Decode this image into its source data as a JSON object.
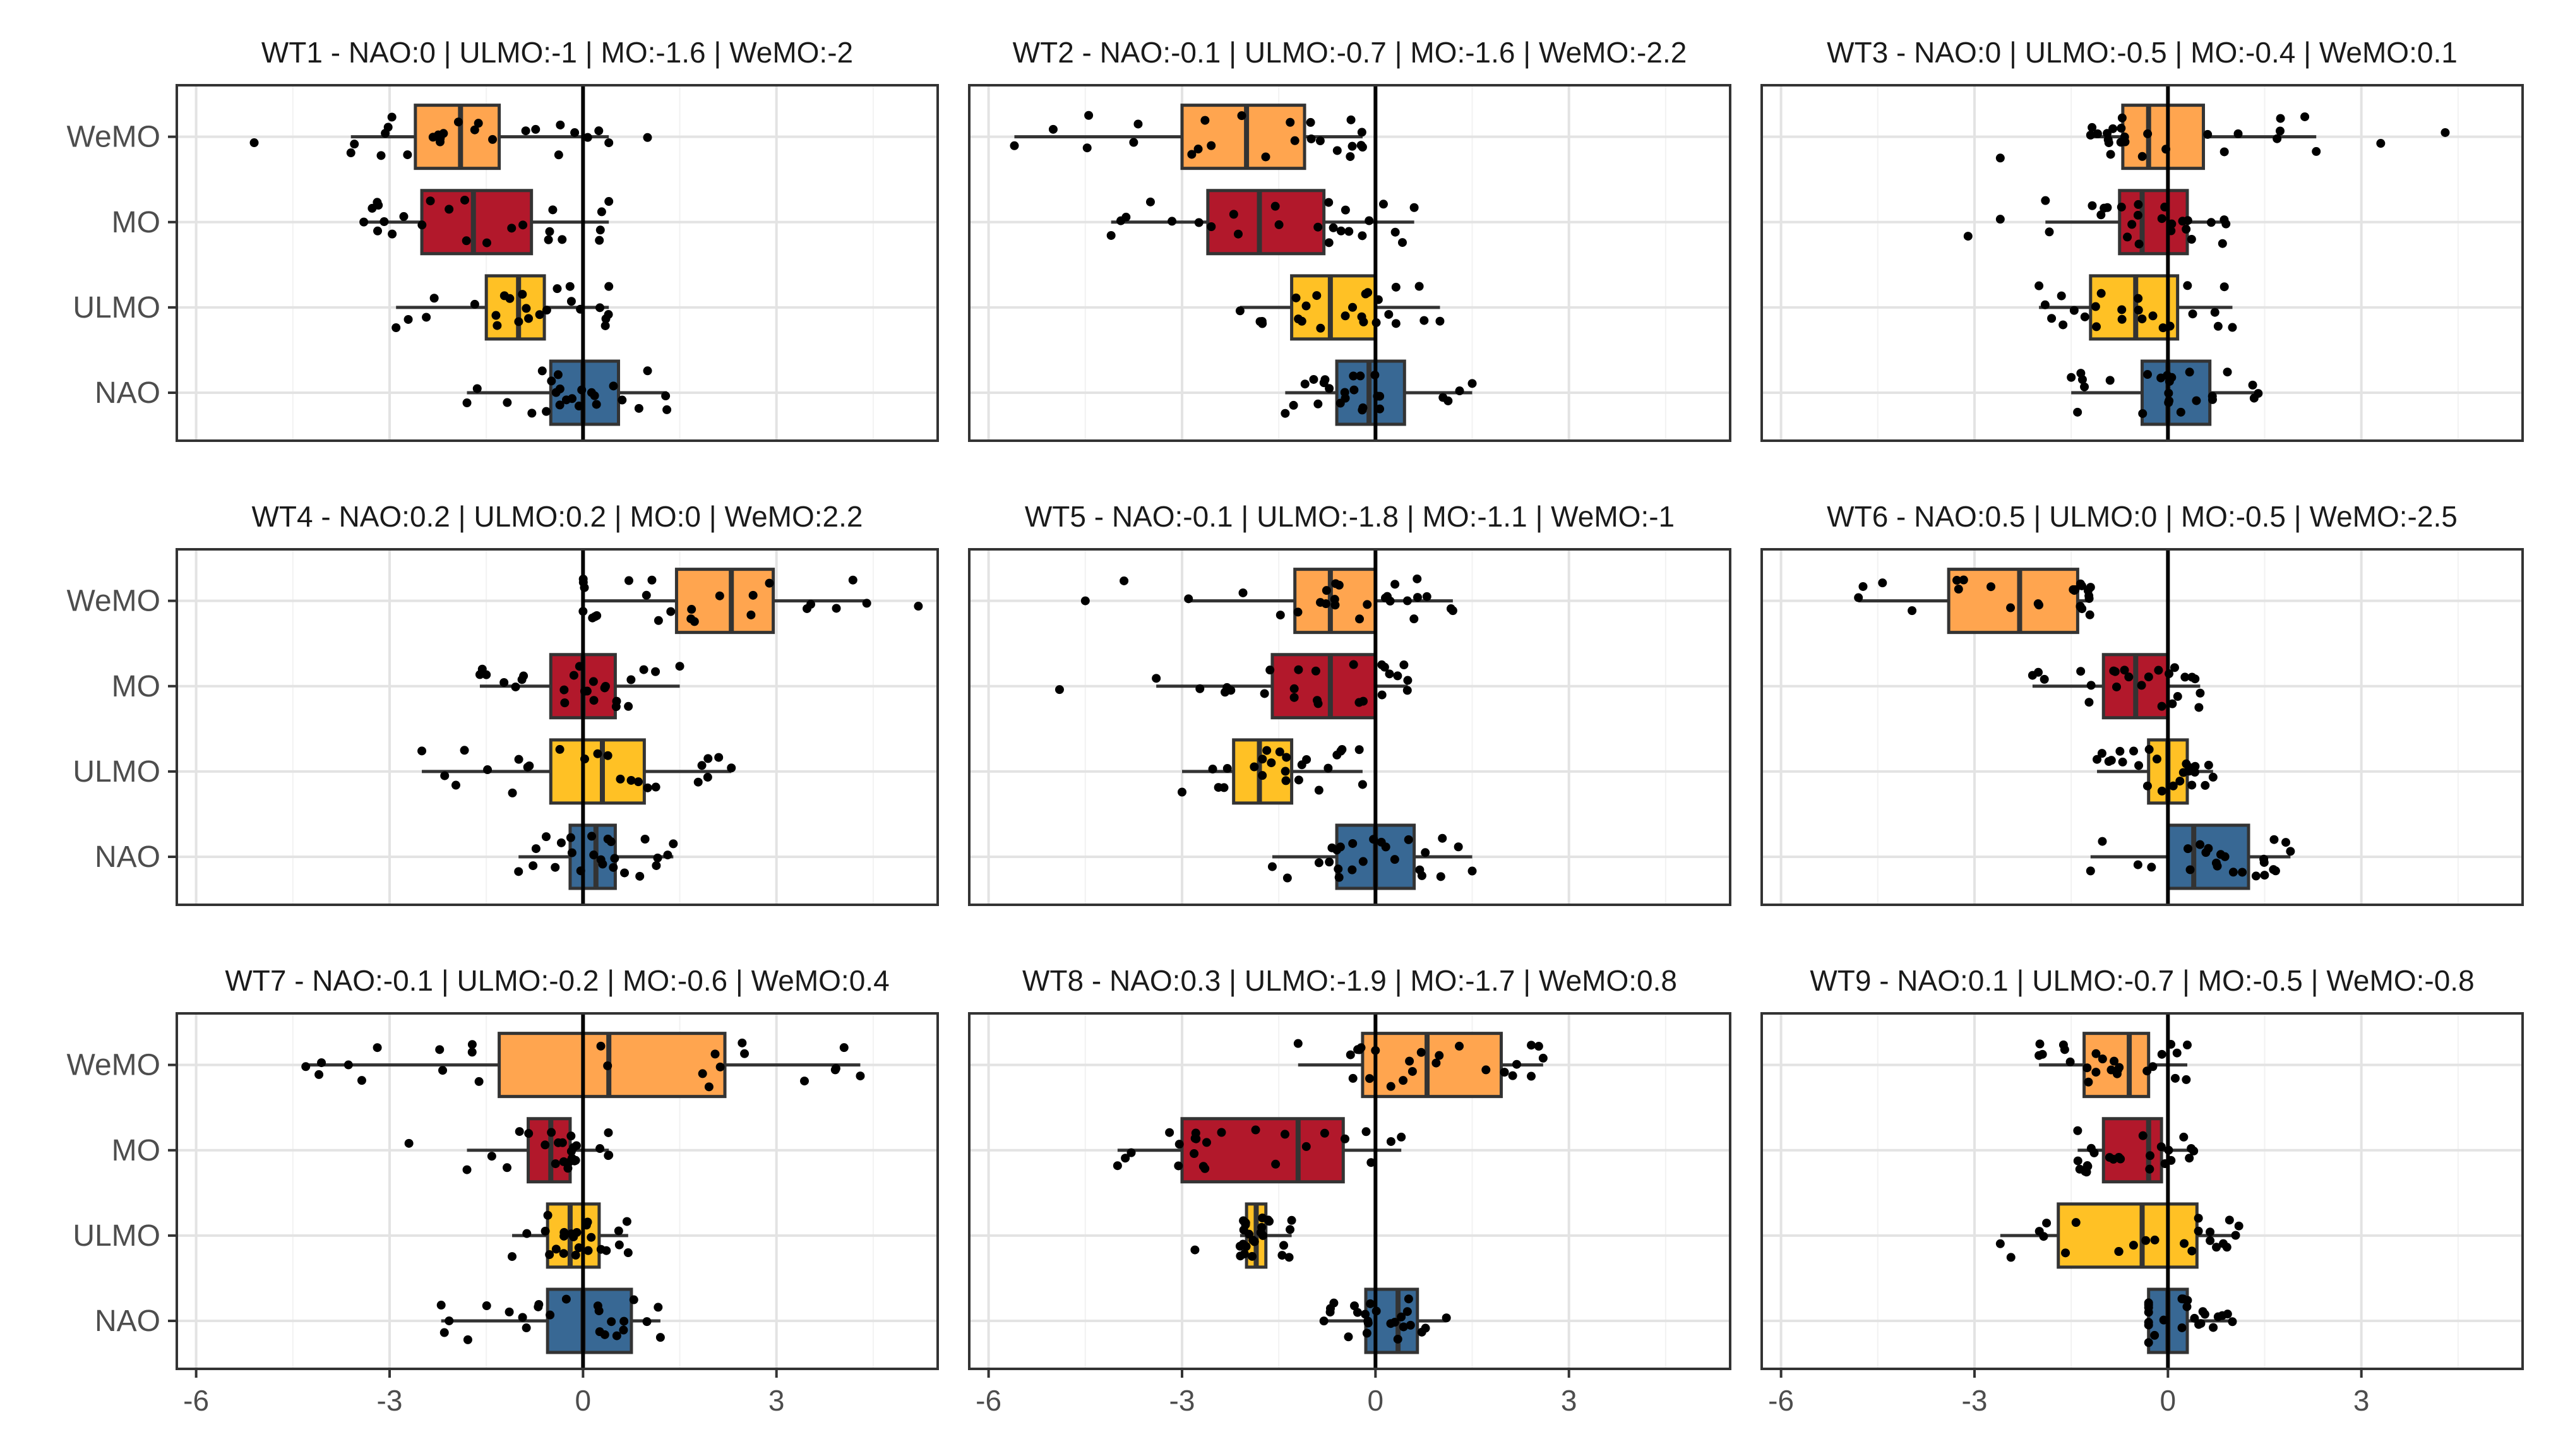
{
  "chart_data": {
    "type": "boxplot-facets",
    "orientation": "horizontal",
    "categories": [
      "WeMO",
      "MO",
      "ULMO",
      "NAO"
    ],
    "colors": {
      "WeMO": "#FFA54F",
      "MO": "#B2182B",
      "ULMO": "#FFC125",
      "NAO": "#386894"
    },
    "xlim": [
      -6.3,
      5.5
    ],
    "xticks": [
      -6,
      -3,
      0,
      3
    ],
    "xtick_labels": [
      "-6",
      "-3",
      "0",
      "3"
    ],
    "grid": true,
    "reference_line": 0,
    "panels": [
      {
        "title": "WT1 - NAO:0 | ULMO:-1 | MO:-1.6 | WeMO:-2",
        "boxes": [
          {
            "category": "WeMO",
            "whisker_low": -3.6,
            "q1": -2.6,
            "median": -1.9,
            "q3": -1.3,
            "whisker_high": 0.4,
            "outliers": [
              -5.1,
              1.0
            ]
          },
          {
            "category": "MO",
            "whisker_low": -3.4,
            "q1": -2.5,
            "median": -1.7,
            "q3": -0.8,
            "whisker_high": 0.4,
            "outliers": []
          },
          {
            "category": "ULMO",
            "whisker_low": -2.9,
            "q1": -1.5,
            "median": -1.0,
            "q3": -0.6,
            "whisker_high": 0.4,
            "outliers": []
          },
          {
            "category": "NAO",
            "whisker_low": -1.8,
            "q1": -0.5,
            "median": 0.0,
            "q3": 0.55,
            "whisker_high": 1.3,
            "outliers": []
          }
        ]
      },
      {
        "title": "WT2 - NAO:-0.1 | ULMO:-0.7 | MO:-1.6 | WeMO:-2.2",
        "boxes": [
          {
            "category": "WeMO",
            "whisker_low": -5.6,
            "q1": -3.0,
            "median": -2.0,
            "q3": -1.1,
            "whisker_high": -0.2,
            "outliers": []
          },
          {
            "category": "MO",
            "whisker_low": -4.1,
            "q1": -2.6,
            "median": -1.8,
            "q3": -0.8,
            "whisker_high": 0.6,
            "outliers": []
          },
          {
            "category": "ULMO",
            "whisker_low": -2.1,
            "q1": -1.3,
            "median": -0.7,
            "q3": 0.0,
            "whisker_high": 1.0,
            "outliers": []
          },
          {
            "category": "NAO",
            "whisker_low": -1.4,
            "q1": -0.6,
            "median": -0.1,
            "q3": 0.45,
            "whisker_high": 1.5,
            "outliers": []
          }
        ]
      },
      {
        "title": "WT3 - NAO:0 | ULMO:-0.5 | MO:-0.4 | WeMO:0.1",
        "boxes": [
          {
            "category": "WeMO",
            "whisker_low": -1.2,
            "q1": -0.7,
            "median": -0.3,
            "q3": 0.55,
            "whisker_high": 2.3,
            "outliers": [
              -2.6,
              3.3,
              4.3
            ]
          },
          {
            "category": "MO",
            "whisker_low": -1.9,
            "q1": -0.75,
            "median": -0.4,
            "q3": 0.3,
            "whisker_high": 0.9,
            "outliers": [
              -3.1,
              -2.6
            ]
          },
          {
            "category": "ULMO",
            "whisker_low": -2.0,
            "q1": -1.2,
            "median": -0.5,
            "q3": 0.15,
            "whisker_high": 1.0,
            "outliers": []
          },
          {
            "category": "NAO",
            "whisker_low": -1.5,
            "q1": -0.4,
            "median": 0.0,
            "q3": 0.65,
            "whisker_high": 1.4,
            "outliers": []
          }
        ]
      },
      {
        "title": "WT4 - NAO:0.2 | ULMO:0.2 | MO:0 | WeMO:2.2",
        "boxes": [
          {
            "category": "WeMO",
            "whisker_low": 0.0,
            "q1": 1.45,
            "median": 2.3,
            "q3": 2.95,
            "whisker_high": 4.4,
            "outliers": [
              5.2
            ]
          },
          {
            "category": "MO",
            "whisker_low": -1.6,
            "q1": -0.5,
            "median": 0.0,
            "q3": 0.5,
            "whisker_high": 1.5,
            "outliers": []
          },
          {
            "category": "ULMO",
            "whisker_low": -2.5,
            "q1": -0.5,
            "median": 0.3,
            "q3": 0.95,
            "whisker_high": 2.3,
            "outliers": []
          },
          {
            "category": "NAO",
            "whisker_low": -1.0,
            "q1": -0.2,
            "median": 0.2,
            "q3": 0.5,
            "whisker_high": 1.4,
            "outliers": []
          }
        ]
      },
      {
        "title": "WT5 - NAO:-0.1 | ULMO:-1.8 | MO:-1.1 | WeMO:-1",
        "boxes": [
          {
            "category": "WeMO",
            "whisker_low": -2.9,
            "q1": -1.25,
            "median": -0.7,
            "q3": 0.0,
            "whisker_high": 1.2,
            "outliers": [
              -4.5,
              -3.9
            ]
          },
          {
            "category": "MO",
            "whisker_low": -3.4,
            "q1": -1.6,
            "median": -0.7,
            "q3": 0.0,
            "whisker_high": 0.5,
            "outliers": [
              -4.9
            ]
          },
          {
            "category": "ULMO",
            "whisker_low": -3.0,
            "q1": -2.2,
            "median": -1.8,
            "q3": -1.3,
            "whisker_high": -0.2,
            "outliers": []
          },
          {
            "category": "NAO",
            "whisker_low": -1.6,
            "q1": -0.6,
            "median": 0.0,
            "q3": 0.6,
            "whisker_high": 1.5,
            "outliers": []
          }
        ]
      },
      {
        "title": "WT6 - NAO:0.5 | ULMO:0 | MO:-0.5 | WeMO:-2.5",
        "boxes": [
          {
            "category": "WeMO",
            "whisker_low": -4.8,
            "q1": -3.4,
            "median": -2.3,
            "q3": -1.4,
            "whisker_high": -1.2,
            "outliers": []
          },
          {
            "category": "MO",
            "whisker_low": -2.1,
            "q1": -1.0,
            "median": -0.5,
            "q3": 0.0,
            "whisker_high": 0.5,
            "outliers": []
          },
          {
            "category": "ULMO",
            "whisker_low": -1.1,
            "q1": -0.3,
            "median": 0.0,
            "q3": 0.3,
            "whisker_high": 0.7,
            "outliers": []
          },
          {
            "category": "NAO",
            "whisker_low": -1.2,
            "q1": 0.0,
            "median": 0.4,
            "q3": 1.25,
            "whisker_high": 1.9,
            "outliers": []
          }
        ]
      },
      {
        "title": "WT7 - NAO:-0.1 | ULMO:-0.2 | MO:-0.6 | WeMO:0.4",
        "boxes": [
          {
            "category": "WeMO",
            "whisker_low": -4.3,
            "q1": -1.3,
            "median": 0.4,
            "q3": 2.2,
            "whisker_high": 4.3,
            "outliers": []
          },
          {
            "category": "MO",
            "whisker_low": -1.8,
            "q1": -0.85,
            "median": -0.5,
            "q3": -0.2,
            "whisker_high": 0.4,
            "outliers": [
              -2.7
            ]
          },
          {
            "category": "ULMO",
            "whisker_low": -1.1,
            "q1": -0.55,
            "median": -0.2,
            "q3": 0.25,
            "whisker_high": 0.7,
            "outliers": []
          },
          {
            "category": "NAO",
            "whisker_low": -2.2,
            "q1": -0.55,
            "median": 0.0,
            "q3": 0.75,
            "whisker_high": 1.2,
            "outliers": []
          }
        ]
      },
      {
        "title": "WT8 - NAO:0.3 | ULMO:-1.9 | MO:-1.7 | WeMO:0.8",
        "boxes": [
          {
            "category": "WeMO",
            "whisker_low": -1.2,
            "q1": -0.2,
            "median": 0.8,
            "q3": 1.95,
            "whisker_high": 2.6,
            "outliers": []
          },
          {
            "category": "MO",
            "whisker_low": -4.0,
            "q1": -3.0,
            "median": -1.2,
            "q3": -0.5,
            "whisker_high": 0.4,
            "outliers": []
          },
          {
            "category": "ULMO",
            "whisker_low": -2.1,
            "q1": -2.0,
            "median": -1.85,
            "q3": -1.7,
            "whisker_high": -1.3,
            "outliers": [
              -2.8
            ]
          },
          {
            "category": "NAO",
            "whisker_low": -0.8,
            "q1": -0.15,
            "median": 0.35,
            "q3": 0.65,
            "whisker_high": 1.1,
            "outliers": []
          }
        ]
      },
      {
        "title": "WT9 - NAO:0.1 | ULMO:-0.7 | MO:-0.5 | WeMO:-0.8",
        "boxes": [
          {
            "category": "WeMO",
            "whisker_low": -2.0,
            "q1": -1.3,
            "median": -0.6,
            "q3": -0.3,
            "whisker_high": 0.3,
            "outliers": []
          },
          {
            "category": "MO",
            "whisker_low": -1.4,
            "q1": -1.0,
            "median": -0.3,
            "q3": -0.1,
            "whisker_high": 0.4,
            "outliers": []
          },
          {
            "category": "ULMO",
            "whisker_low": -2.6,
            "q1": -1.7,
            "median": -0.4,
            "q3": 0.45,
            "whisker_high": 1.1,
            "outliers": []
          },
          {
            "category": "NAO",
            "whisker_low": -0.3,
            "q1": -0.3,
            "median": 0.0,
            "q3": 0.3,
            "whisker_high": 1.0,
            "outliers": []
          }
        ]
      }
    ]
  }
}
